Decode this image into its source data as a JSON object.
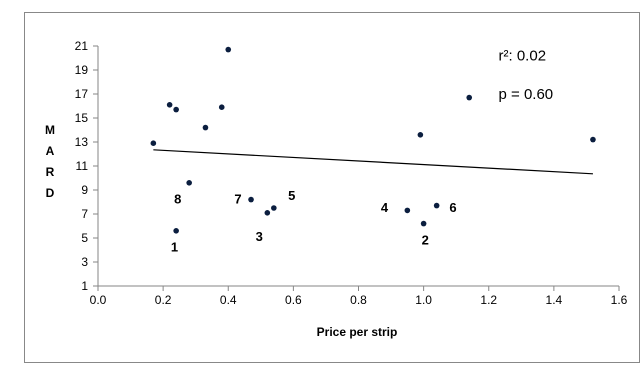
{
  "chart_data": {
    "type": "scatter",
    "xlabel": "Price per strip",
    "ylabel": "M A R D",
    "ylabel_letters": [
      "M",
      "A",
      "R",
      "D"
    ],
    "xlim": [
      0.0,
      1.6
    ],
    "ylim": [
      1,
      21
    ],
    "xticks": [
      "0.0",
      "0.2",
      "0.4",
      "0.6",
      "0.8",
      "1.0",
      "1.2",
      "1.4",
      "1.6"
    ],
    "yticks": [
      "1",
      "3",
      "5",
      "7",
      "9",
      "11",
      "13",
      "15",
      "17",
      "19",
      "21"
    ],
    "grid": false,
    "points": [
      {
        "x": 0.17,
        "y": 12.9
      },
      {
        "x": 0.22,
        "y": 16.1
      },
      {
        "x": 0.24,
        "y": 15.7
      },
      {
        "x": 0.24,
        "y": 5.6
      },
      {
        "x": 0.28,
        "y": 9.6
      },
      {
        "x": 0.33,
        "y": 14.2
      },
      {
        "x": 0.38,
        "y": 15.9
      },
      {
        "x": 0.4,
        "y": 20.7
      },
      {
        "x": 0.47,
        "y": 8.2
      },
      {
        "x": 0.52,
        "y": 7.1
      },
      {
        "x": 0.54,
        "y": 7.5
      },
      {
        "x": 0.95,
        "y": 7.3
      },
      {
        "x": 0.99,
        "y": 13.6
      },
      {
        "x": 1.0,
        "y": 6.2
      },
      {
        "x": 1.04,
        "y": 7.7
      },
      {
        "x": 1.14,
        "y": 16.7
      },
      {
        "x": 1.52,
        "y": 13.2
      }
    ],
    "trendline": {
      "x": [
        0.17,
        1.52
      ],
      "y": [
        12.35,
        10.35
      ]
    },
    "point_labels": [
      {
        "text": "1",
        "x": 0.235,
        "y": 4.2
      },
      {
        "text": "2",
        "x": 1.005,
        "y": 4.8
      },
      {
        "text": "3",
        "x": 0.495,
        "y": 5.1
      },
      {
        "text": "4",
        "x": 0.88,
        "y": 7.5
      },
      {
        "text": "5",
        "x": 0.595,
        "y": 8.5
      },
      {
        "text": "6",
        "x": 1.09,
        "y": 7.5
      },
      {
        "text": "7",
        "x": 0.43,
        "y": 8.2
      },
      {
        "text": "8",
        "x": 0.245,
        "y": 8.2
      }
    ],
    "annotations": [
      {
        "text": "r²: 0.02",
        "x": 1.23,
        "y": 20.2
      },
      {
        "text": "p = 0.60",
        "x": 1.23,
        "y": 17.0
      }
    ],
    "colors": {
      "marker": "#0b1e3f",
      "line": "#000000",
      "axis": "#868686",
      "text": "#000000"
    }
  }
}
